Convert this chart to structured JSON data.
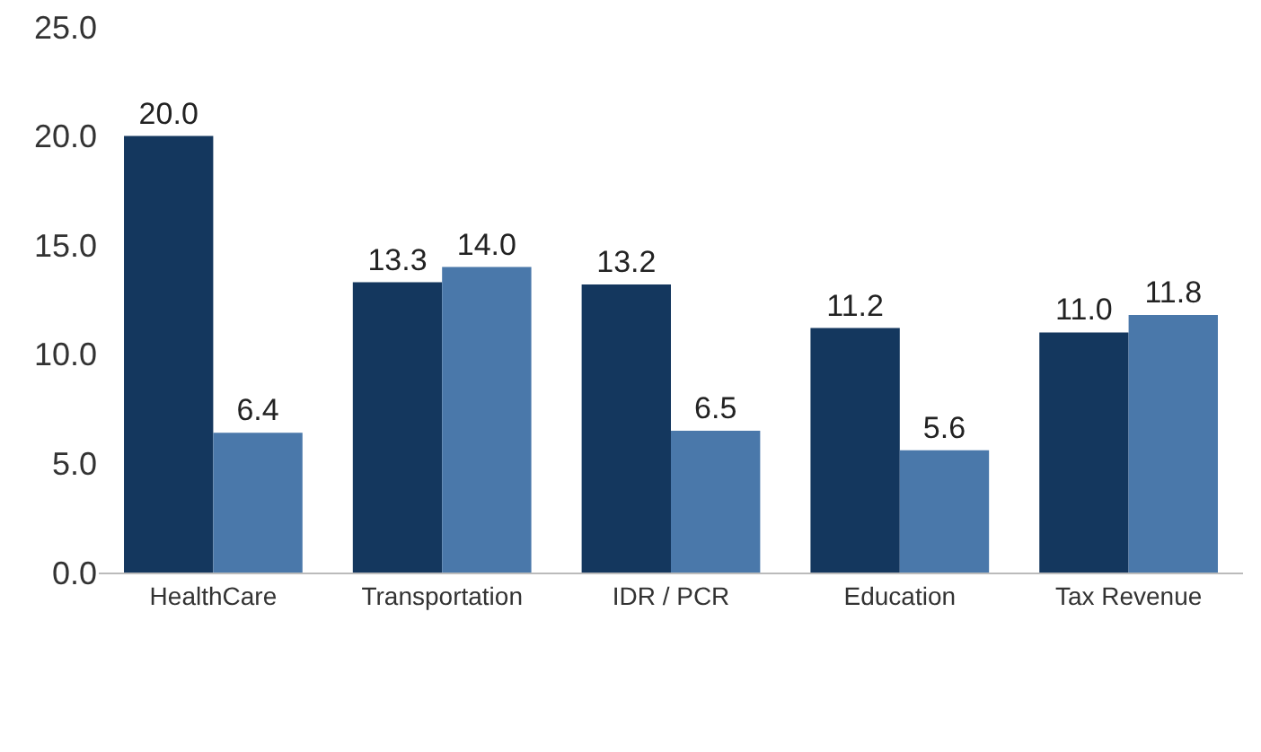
{
  "chart_data": {
    "type": "bar",
    "categories": [
      "HealthCare",
      "Transportation",
      "IDR / PCR",
      "Education",
      "Tax Revenue"
    ],
    "series": [
      {
        "color": "#14375e",
        "values": [
          20.0,
          13.3,
          13.2,
          11.2,
          11.0
        ],
        "value_labels": [
          "20.0",
          "13.3",
          "13.2",
          "11.2",
          "11.0"
        ]
      },
      {
        "color": "#4a78aa",
        "values": [
          6.4,
          14.0,
          6.5,
          5.6,
          11.8
        ],
        "value_labels": [
          "6.4",
          "14.0",
          "6.5",
          "5.6",
          "11.8"
        ]
      }
    ],
    "ylim": [
      0,
      25
    ],
    "yticks": [
      {
        "value": 0,
        "label": "0.0"
      },
      {
        "value": 5,
        "label": "5.0"
      },
      {
        "value": 10,
        "label": "10.0"
      },
      {
        "value": 15,
        "label": "15.0"
      },
      {
        "value": 20,
        "label": "20.0"
      },
      {
        "value": 25,
        "label": "25.0"
      }
    ],
    "grid": false,
    "legend": false
  }
}
